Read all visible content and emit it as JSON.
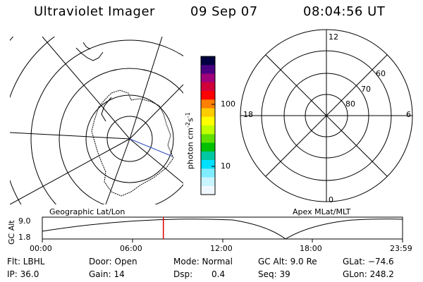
{
  "header": {
    "title": "Ultraviolet Imager",
    "date": "09 Sep 07",
    "time": "08:04:56 UT"
  },
  "geo_panel": {
    "label": "Geographic Lat/Lon"
  },
  "colorbar": {
    "unit": "photon cm",
    "unit_exp1": "-2",
    "unit_s": "s",
    "unit_exp2": "-1",
    "tick_100": "100",
    "tick_10": "10",
    "colors": [
      "#000040",
      "#4b0082",
      "#a0007a",
      "#d0003a",
      "#ff0000",
      "#ff7f00",
      "#ffcc00",
      "#ffff00",
      "#bfff00",
      "#60e000",
      "#00c000",
      "#00c8a0",
      "#00e0ff",
      "#80ecff",
      "#c8f4ff",
      "#f0f8ff"
    ]
  },
  "apex_panel": {
    "label": "Apex MLat/MLT",
    "mlt_12": "12",
    "mlt_18": "18",
    "mlt_6": "6",
    "mlt_0": "0",
    "lat_60": "60",
    "lat_70": "70",
    "lat_80": "80"
  },
  "altitude_plot": {
    "ylabel": "GC Alt",
    "ytick_top": "9.0",
    "ytick_bottom": "1.8",
    "xticks": [
      "00:00",
      "06:00",
      "12:00",
      "18:00",
      "23:59"
    ],
    "current_time_marker_fraction": 0.336
  },
  "footer": {
    "filter": "Flt: LBHL",
    "door": "Door: Open",
    "mode": "Mode: Normal",
    "gc_alt": "GC Alt: 9.0 Re",
    "glat": "GLat: −74.6",
    "ip": "IP: 36.0",
    "gain": "Gain: 14",
    "dsp_label": "Dsp:",
    "dsp_value": "0.4",
    "seq": "Seq: 39",
    "glon": "GLon: 248.2"
  }
}
